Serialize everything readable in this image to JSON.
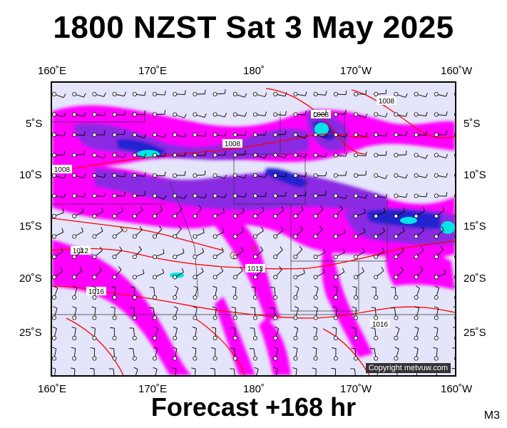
{
  "title": "1800 NZST Sat 3 May 2025",
  "footer": "Forecast +168 hr",
  "model_code": "M3",
  "copyright": "Copyright metvuw.com",
  "top_longitude_labels": [
    "160˚E",
    "170˚E",
    "180˚",
    "170˚W",
    "160˚W"
  ],
  "bottom_longitude_labels": [
    "160˚E",
    "170˚E",
    "180˚",
    "170˚W",
    "160˚W"
  ],
  "latitude_labels": [
    "5˚S",
    "10˚S",
    "15˚S",
    "20˚S",
    "25˚S"
  ],
  "isobar_labels": [
    "1008",
    "1008",
    "1008",
    "1008",
    "1012",
    "1012",
    "1016",
    "1016"
  ],
  "colors": {
    "ocean": "#e4e4fa",
    "rain_light": "#ff00ff",
    "rain_medium": "#8a2be2",
    "rain_heavy": "#2020d0",
    "rain_extreme": "#00e5e5",
    "isobar": "#ff0000",
    "wind_barb": "#000000"
  }
}
